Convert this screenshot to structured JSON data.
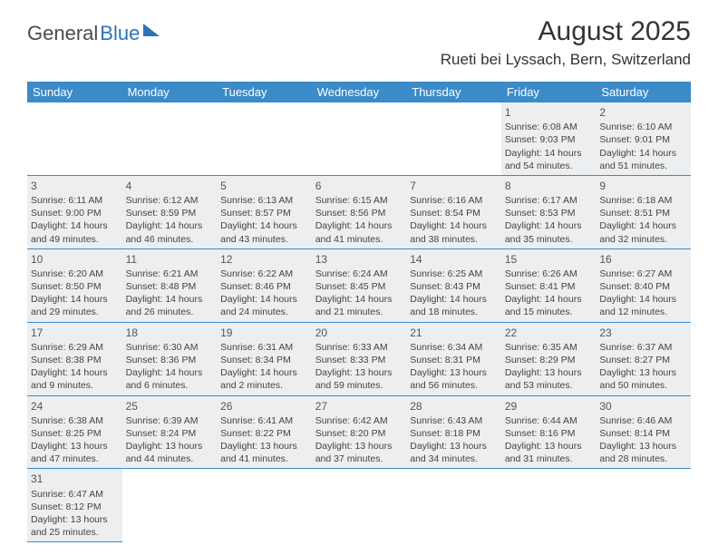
{
  "logo": {
    "word1": "General",
    "word2": "Blue"
  },
  "title": "August 2025",
  "location": "Rueti bei Lyssach, Bern, Switzerland",
  "colors": {
    "header_bg": "#3b8bc9",
    "header_text": "#ffffff",
    "row_bg": "#eceef0",
    "row_border": "#3b8bc9",
    "text": "#444444",
    "logo_blue": "#2d72b8"
  },
  "day_headers": [
    "Sunday",
    "Monday",
    "Tuesday",
    "Wednesday",
    "Thursday",
    "Friday",
    "Saturday"
  ],
  "weeks": [
    [
      null,
      null,
      null,
      null,
      null,
      {
        "n": "1",
        "sr": "6:08 AM",
        "ss": "9:03 PM",
        "dl": "14 hours and 54 minutes."
      },
      {
        "n": "2",
        "sr": "6:10 AM",
        "ss": "9:01 PM",
        "dl": "14 hours and 51 minutes."
      }
    ],
    [
      {
        "n": "3",
        "sr": "6:11 AM",
        "ss": "9:00 PM",
        "dl": "14 hours and 49 minutes."
      },
      {
        "n": "4",
        "sr": "6:12 AM",
        "ss": "8:59 PM",
        "dl": "14 hours and 46 minutes."
      },
      {
        "n": "5",
        "sr": "6:13 AM",
        "ss": "8:57 PM",
        "dl": "14 hours and 43 minutes."
      },
      {
        "n": "6",
        "sr": "6:15 AM",
        "ss": "8:56 PM",
        "dl": "14 hours and 41 minutes."
      },
      {
        "n": "7",
        "sr": "6:16 AM",
        "ss": "8:54 PM",
        "dl": "14 hours and 38 minutes."
      },
      {
        "n": "8",
        "sr": "6:17 AM",
        "ss": "8:53 PM",
        "dl": "14 hours and 35 minutes."
      },
      {
        "n": "9",
        "sr": "6:18 AM",
        "ss": "8:51 PM",
        "dl": "14 hours and 32 minutes."
      }
    ],
    [
      {
        "n": "10",
        "sr": "6:20 AM",
        "ss": "8:50 PM",
        "dl": "14 hours and 29 minutes."
      },
      {
        "n": "11",
        "sr": "6:21 AM",
        "ss": "8:48 PM",
        "dl": "14 hours and 26 minutes."
      },
      {
        "n": "12",
        "sr": "6:22 AM",
        "ss": "8:46 PM",
        "dl": "14 hours and 24 minutes."
      },
      {
        "n": "13",
        "sr": "6:24 AM",
        "ss": "8:45 PM",
        "dl": "14 hours and 21 minutes."
      },
      {
        "n": "14",
        "sr": "6:25 AM",
        "ss": "8:43 PM",
        "dl": "14 hours and 18 minutes."
      },
      {
        "n": "15",
        "sr": "6:26 AM",
        "ss": "8:41 PM",
        "dl": "14 hours and 15 minutes."
      },
      {
        "n": "16",
        "sr": "6:27 AM",
        "ss": "8:40 PM",
        "dl": "14 hours and 12 minutes."
      }
    ],
    [
      {
        "n": "17",
        "sr": "6:29 AM",
        "ss": "8:38 PM",
        "dl": "14 hours and 9 minutes."
      },
      {
        "n": "18",
        "sr": "6:30 AM",
        "ss": "8:36 PM",
        "dl": "14 hours and 6 minutes."
      },
      {
        "n": "19",
        "sr": "6:31 AM",
        "ss": "8:34 PM",
        "dl": "14 hours and 2 minutes."
      },
      {
        "n": "20",
        "sr": "6:33 AM",
        "ss": "8:33 PM",
        "dl": "13 hours and 59 minutes."
      },
      {
        "n": "21",
        "sr": "6:34 AM",
        "ss": "8:31 PM",
        "dl": "13 hours and 56 minutes."
      },
      {
        "n": "22",
        "sr": "6:35 AM",
        "ss": "8:29 PM",
        "dl": "13 hours and 53 minutes."
      },
      {
        "n": "23",
        "sr": "6:37 AM",
        "ss": "8:27 PM",
        "dl": "13 hours and 50 minutes."
      }
    ],
    [
      {
        "n": "24",
        "sr": "6:38 AM",
        "ss": "8:25 PM",
        "dl": "13 hours and 47 minutes."
      },
      {
        "n": "25",
        "sr": "6:39 AM",
        "ss": "8:24 PM",
        "dl": "13 hours and 44 minutes."
      },
      {
        "n": "26",
        "sr": "6:41 AM",
        "ss": "8:22 PM",
        "dl": "13 hours and 41 minutes."
      },
      {
        "n": "27",
        "sr": "6:42 AM",
        "ss": "8:20 PM",
        "dl": "13 hours and 37 minutes."
      },
      {
        "n": "28",
        "sr": "6:43 AM",
        "ss": "8:18 PM",
        "dl": "13 hours and 34 minutes."
      },
      {
        "n": "29",
        "sr": "6:44 AM",
        "ss": "8:16 PM",
        "dl": "13 hours and 31 minutes."
      },
      {
        "n": "30",
        "sr": "6:46 AM",
        "ss": "8:14 PM",
        "dl": "13 hours and 28 minutes."
      }
    ],
    [
      {
        "n": "31",
        "sr": "6:47 AM",
        "ss": "8:12 PM",
        "dl": "13 hours and 25 minutes."
      },
      null,
      null,
      null,
      null,
      null,
      null
    ]
  ],
  "labels": {
    "sunrise": "Sunrise: ",
    "sunset": "Sunset: ",
    "daylight": "Daylight: "
  }
}
